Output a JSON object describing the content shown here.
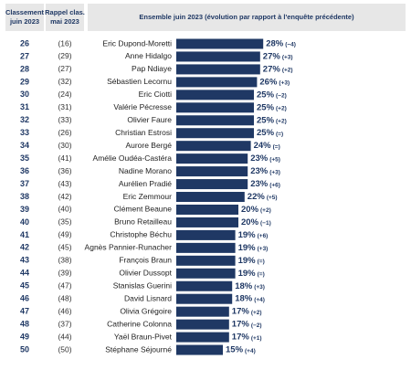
{
  "chart_data": {
    "type": "bar",
    "headers": [
      "Classement juin 2023",
      "Rappel clas. mai 2023",
      "Ensemble juin 2023 (évolution par rapport à l'enquête précédente)"
    ],
    "color": "#1f3864",
    "ranks": [
      26,
      27,
      28,
      29,
      30,
      31,
      32,
      33,
      34,
      35,
      36,
      37,
      38,
      39,
      40,
      41,
      42,
      43,
      44,
      45,
      46,
      47,
      48,
      49,
      50
    ],
    "previous_ranks": [
      "(16)",
      "(29)",
      "(27)",
      "(32)",
      "(24)",
      "(31)",
      "(33)",
      "(26)",
      "(30)",
      "(41)",
      "(36)",
      "(43)",
      "(42)",
      "(40)",
      "(35)",
      "(49)",
      "(45)",
      "(38)",
      "(39)",
      "(47)",
      "(48)",
      "(46)",
      "(37)",
      "(44)",
      "(50)"
    ],
    "categories": [
      "Eric Dupond-Moretti",
      "Anne Hidalgo",
      "Pap Ndiaye",
      "Sébastien Lecornu",
      "Eric Ciotti",
      "Valérie Pécresse",
      "Olivier Faure",
      "Christian Estrosi",
      "Aurore Bergé",
      "Amélie Oudéa-Castéra",
      "Nadine Morano",
      "Aurélien Pradié",
      "Eric Zemmour",
      "Clément Beaune",
      "Bruno Retailleau",
      "Christophe Béchu",
      "Agnès Pannier-Runacher",
      "François Braun",
      "Olivier Dussopt",
      "Stanislas Guerini",
      "David Lisnard",
      "Olivia Grégoire",
      "Catherine Colonna",
      "Yaël Braun-Pivet",
      "Stéphane Séjourné"
    ],
    "values": [
      28,
      27,
      27,
      26,
      25,
      25,
      25,
      25,
      24,
      23,
      23,
      23,
      22,
      20,
      20,
      19,
      19,
      19,
      19,
      18,
      18,
      17,
      17,
      17,
      15
    ],
    "value_labels": [
      "28%",
      "27%",
      "27%",
      "26%",
      "25%",
      "25%",
      "25%",
      "25%",
      "24%",
      "23%",
      "23%",
      "23%",
      "22%",
      "20%",
      "20%",
      "19%",
      "19%",
      "19%",
      "19%",
      "18%",
      "18%",
      "17%",
      "17%",
      "17%",
      "15%"
    ],
    "changes": [
      "(−4)",
      "(+3)",
      "(+2)",
      "(+3)",
      "(−2)",
      "(+2)",
      "(+2)",
      "(=)",
      "(=)",
      "(+5)",
      "(+3)",
      "(+6)",
      "(+5)",
      "(+2)",
      "(−1)",
      "(+6)",
      "(+3)",
      "(=)",
      "(=)",
      "(+3)",
      "(+4)",
      "(+2)",
      "(−2)",
      "(+1)",
      "(+4)"
    ]
  }
}
